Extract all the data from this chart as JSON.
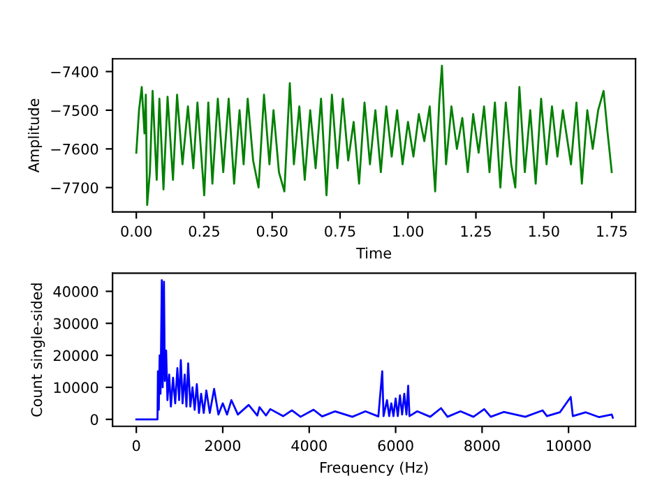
{
  "chart_data": [
    {
      "type": "line",
      "xlabel": "Time",
      "ylabel": "Amplitude",
      "xlim": [
        -0.0875,
        1.8375
      ],
      "ylim": [
        -7763,
        -7367
      ],
      "xticks": [
        {
          "value": 0,
          "label": "0.00"
        },
        {
          "value": 0.25,
          "label": "0.25"
        },
        {
          "value": 0.5,
          "label": "0.50"
        },
        {
          "value": 0.75,
          "label": "0.75"
        },
        {
          "value": 1.0,
          "label": "1.00"
        },
        {
          "value": 1.25,
          "label": "1.25"
        },
        {
          "value": 1.5,
          "label": "1.50"
        },
        {
          "value": 1.75,
          "label": "1.75"
        }
      ],
      "yticks": [
        {
          "value": -7700,
          "label": "−7700"
        },
        {
          "value": -7600,
          "label": "−7600"
        },
        {
          "value": -7500,
          "label": "−7500"
        },
        {
          "value": -7400,
          "label": "−7400"
        }
      ],
      "grid": false,
      "legend": false,
      "series": [
        {
          "color": "#008000",
          "x": [
            0,
            0.01,
            0.02,
            0.03,
            0.035,
            0.04,
            0.05,
            0.06,
            0.075,
            0.085,
            0.1,
            0.115,
            0.135,
            0.15,
            0.17,
            0.19,
            0.21,
            0.225,
            0.25,
            0.265,
            0.28,
            0.3,
            0.32,
            0.34,
            0.36,
            0.38,
            0.395,
            0.41,
            0.43,
            0.45,
            0.47,
            0.49,
            0.505,
            0.525,
            0.545,
            0.565,
            0.58,
            0.6,
            0.62,
            0.64,
            0.66,
            0.68,
            0.7,
            0.72,
            0.74,
            0.76,
            0.78,
            0.8,
            0.82,
            0.84,
            0.86,
            0.88,
            0.9,
            0.92,
            0.94,
            0.96,
            0.98,
            1.0,
            1.02,
            1.04,
            1.06,
            1.08,
            1.1,
            1.115,
            1.125,
            1.14,
            1.16,
            1.18,
            1.2,
            1.22,
            1.24,
            1.26,
            1.28,
            1.3,
            1.32,
            1.34,
            1.36,
            1.38,
            1.395,
            1.41,
            1.43,
            1.45,
            1.47,
            1.49,
            1.51,
            1.53,
            1.55,
            1.57,
            1.6,
            1.62,
            1.64,
            1.66,
            1.68,
            1.7,
            1.72,
            1.735,
            1.75
          ],
          "values": [
            -7610,
            -7500,
            -7440,
            -7560,
            -7460,
            -7745,
            -7660,
            -7450,
            -7680,
            -7470,
            -7705,
            -7465,
            -7680,
            -7460,
            -7640,
            -7490,
            -7650,
            -7480,
            -7720,
            -7480,
            -7690,
            -7470,
            -7660,
            -7470,
            -7690,
            -7500,
            -7640,
            -7470,
            -7630,
            -7700,
            -7460,
            -7640,
            -7500,
            -7660,
            -7710,
            -7430,
            -7640,
            -7490,
            -7680,
            -7500,
            -7650,
            -7470,
            -7720,
            -7460,
            -7650,
            -7470,
            -7630,
            -7530,
            -7690,
            -7480,
            -7640,
            -7500,
            -7660,
            -7490,
            -7620,
            -7500,
            -7640,
            -7530,
            -7620,
            -7510,
            -7580,
            -7490,
            -7710,
            -7480,
            -7385,
            -7640,
            -7490,
            -7600,
            -7520,
            -7660,
            -7510,
            -7610,
            -7490,
            -7660,
            -7480,
            -7700,
            -7480,
            -7640,
            -7700,
            -7440,
            -7660,
            -7500,
            -7690,
            -7470,
            -7640,
            -7490,
            -7620,
            -7500,
            -7640,
            -7480,
            -7690,
            -7500,
            -7600,
            -7500,
            -7450,
            -7560,
            -7660
          ]
        }
      ]
    },
    {
      "type": "line",
      "xlabel": "Frequency (Hz)",
      "ylabel": "Count single-sided",
      "xlim": [
        -550,
        11550
      ],
      "ylim": [
        -2175,
        45675
      ],
      "xticks": [
        0,
        2000,
        4000,
        6000,
        8000,
        10000
      ],
      "yticks": [
        0,
        10000,
        20000,
        30000,
        40000
      ],
      "grid": false,
      "legend": false,
      "series": [
        {
          "color": "#0000ff",
          "x": [
            0,
            490,
            500,
            520,
            540,
            560,
            590,
            610,
            640,
            660,
            690,
            720,
            760,
            800,
            850,
            900,
            950,
            990,
            1030,
            1070,
            1120,
            1160,
            1200,
            1250,
            1300,
            1350,
            1400,
            1450,
            1500,
            1560,
            1620,
            1700,
            1800,
            1900,
            2000,
            2100,
            2200,
            2350,
            2600,
            2800,
            2850,
            3000,
            3100,
            3400,
            3600,
            3800,
            4100,
            4300,
            4600,
            5000,
            5300,
            5600,
            5690,
            5720,
            5800,
            5850,
            5900,
            5950,
            6000,
            6050,
            6100,
            6150,
            6200,
            6250,
            6290,
            6320,
            6500,
            6800,
            7050,
            7200,
            7500,
            7800,
            8050,
            8200,
            8500,
            9000,
            9400,
            9500,
            9800,
            10050,
            10100,
            10400,
            10700,
            11000,
            11025
          ],
          "values": [
            0,
            0,
            15000,
            3000,
            20000,
            8000,
            43500,
            10000,
            43000,
            12000,
            21500,
            6000,
            14000,
            4000,
            13000,
            5000,
            16000,
            6000,
            18500,
            5000,
            14000,
            4000,
            17500,
            4000,
            10000,
            3000,
            11000,
            2000,
            8000,
            2000,
            9000,
            2000,
            9500,
            1500,
            5000,
            1500,
            6000,
            1500,
            4500,
            1200,
            3800,
            1200,
            3200,
            1000,
            2800,
            800,
            3000,
            900,
            2500,
            800,
            2500,
            900,
            15000,
            1000,
            6000,
            1000,
            5000,
            1000,
            6500,
            1000,
            7500,
            1500,
            8000,
            1500,
            10500,
            1000,
            2500,
            800,
            3500,
            800,
            2500,
            800,
            3200,
            800,
            2300,
            800,
            2800,
            1000,
            2200,
            7000,
            1000,
            2200,
            700,
            1500,
            500
          ]
        }
      ]
    }
  ]
}
